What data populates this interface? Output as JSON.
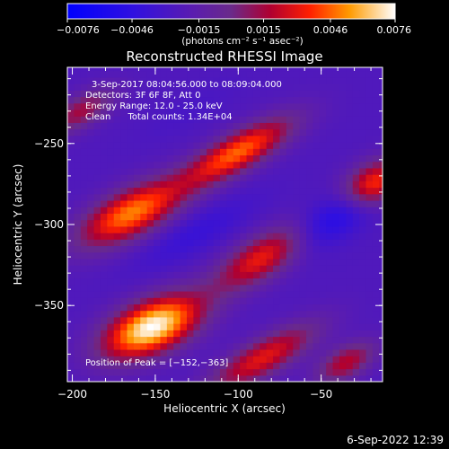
{
  "chart_data": {
    "type": "heatmap",
    "title": "Reconstructed RHESSI Image",
    "xlabel": "Heliocentric X (arcsec)",
    "ylabel": "Heliocentric Y (arcsec)",
    "xlim": [
      -203,
      -13
    ],
    "ylim": [
      -397,
      -203
    ],
    "x_ticks": [
      -200,
      -150,
      -100,
      -50
    ],
    "x_tick_labels": [
      "−200",
      "−150",
      "−100",
      "−50"
    ],
    "y_ticks": [
      -250,
      -300,
      -350
    ],
    "y_tick_labels": [
      "−250",
      "−300",
      "−350"
    ],
    "colorbar": {
      "range": [
        -0.0076,
        0.0076
      ],
      "tick_values": [
        -0.0076,
        -0.0046,
        -0.0015,
        0.0015,
        0.0046,
        0.0076
      ],
      "tick_labels": [
        "−0.0076",
        "−0.0046",
        "−0.0015",
        "0.0015",
        "0.0046",
        "0.0076"
      ],
      "unit_label": "(photons cm⁻² s⁻¹ asec⁻²)"
    },
    "info_lines": [
      "3-Sep-2017 08:04:56.000 to 08:09:04.000",
      "Detectors: 3F 6F 8F, Att 0",
      "Energy Range: 12.0 - 25.0 keV",
      "Clean      Total counts: 1.34E+04"
    ],
    "peak_label": "Position of Peak = [−152,−363]",
    "peak": [
      -152,
      -363
    ],
    "sources": [
      {
        "x": -152,
        "y": -363,
        "value": 0.0076,
        "sx": 22,
        "sy": 11,
        "angle": 25
      },
      {
        "x": -165,
        "y": -293,
        "value": 0.005,
        "sx": 24,
        "sy": 10,
        "angle": 28
      },
      {
        "x": -100,
        "y": -255,
        "value": 0.0046,
        "sx": 26,
        "sy": 8,
        "angle": 30
      },
      {
        "x": -82,
        "y": -318,
        "value": 0.0046,
        "sx": 24,
        "sy": 9,
        "angle": 32
      },
      {
        "x": -85,
        "y": -382,
        "value": 0.003,
        "sx": 26,
        "sy": 8,
        "angle": 30
      },
      {
        "x": -18,
        "y": -275,
        "value": 0.0045,
        "sx": 14,
        "sy": 9,
        "angle": 30
      },
      {
        "x": -35,
        "y": -385,
        "value": 0.002,
        "sx": 14,
        "sy": 7,
        "angle": 30
      },
      {
        "x": -195,
        "y": -230,
        "value": 0.0015,
        "sx": 16,
        "sy": 7,
        "angle": 30
      },
      {
        "x": -50,
        "y": -300,
        "value": -0.0065,
        "sx": 28,
        "sy": 9,
        "angle": 30
      },
      {
        "x": -125,
        "y": -305,
        "value": -0.004,
        "sx": 28,
        "sy": 8,
        "angle": 30
      },
      {
        "x": -130,
        "y": -230,
        "value": -0.003,
        "sx": 22,
        "sy": 7,
        "angle": 30
      }
    ],
    "background_value": -0.0025
  },
  "footer_date": "6-Sep-2022 12:39"
}
